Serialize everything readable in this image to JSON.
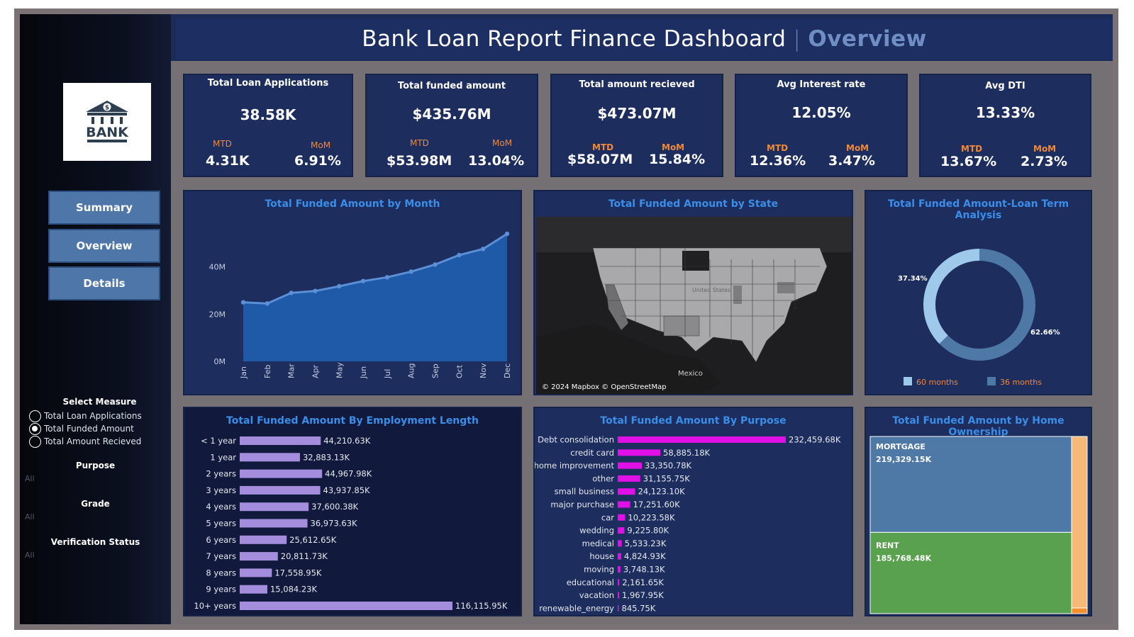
{
  "title": {
    "main": "Bank Loan Report Finance Dashboard",
    "separator": "|",
    "accent": "Overview"
  },
  "logo": {
    "icon": "bank-icon",
    "text": "BANK"
  },
  "nav": [
    {
      "label": "Summary"
    },
    {
      "label": "Overview"
    },
    {
      "label": "Details"
    }
  ],
  "filters": {
    "measure_title": "Select Measure",
    "measures": [
      {
        "label": "Total Loan Applications",
        "selected": false
      },
      {
        "label": "Total Funded Amount",
        "selected": true
      },
      {
        "label": "Total Amount Recieved",
        "selected": false
      }
    ],
    "purpose": {
      "title": "Purpose",
      "value": "All"
    },
    "grade": {
      "title": "Grade",
      "value": "All"
    },
    "verification": {
      "title": "Verification Status",
      "value": "All"
    }
  },
  "kpis": [
    {
      "title": "Total Loan Applications",
      "value": "38.58K",
      "mtd_label": "MTD",
      "mtd": "4.31K",
      "mom_label": "MoM",
      "mom": "6.91%"
    },
    {
      "title": "Total funded amount",
      "value": "$435.76M",
      "mtd_label": "MTD",
      "mtd": "$53.98M",
      "mom_label": "MoM",
      "mom": "13.04%"
    },
    {
      "title": "Total amount recieved",
      "value": "$473.07M",
      "mtd_label": "MTD",
      "mtd": "$58.07M",
      "mom_label": "MoM",
      "mom": "15.84%"
    },
    {
      "title": "Avg Interest rate",
      "value": "12.05%",
      "mtd_label": "MTD",
      "mtd": "12.36%",
      "mom_label": "MoM",
      "mom": "3.47%"
    },
    {
      "title": "Avg DTI",
      "value": "13.33%",
      "mtd_label": "MTD",
      "mtd": "13.67%",
      "mom_label": "MoM",
      "mom": "2.73%"
    }
  ],
  "panels": {
    "month": "Total Funded Amount by Month",
    "state": "Total Funded Amount by State",
    "term": "Total Funded Amount-Loan Term Analysis",
    "employment": "Total Funded Amount By Employment Length",
    "purpose": "Total Funded Amount By Purpose",
    "home": "Total Funded Amount by Home Ownership"
  },
  "map": {
    "attribution": "© 2024 Mapbox © OpenStreetMap",
    "label_mexico": "Mexico",
    "label_us": "United States"
  },
  "colors": {
    "accent": "#3b8ee8",
    "area": "#1f5aa8",
    "emp_bar": "#a48ddc",
    "purpose_bar": "#e010e6",
    "mortgage": "#4e79a7",
    "rent": "#59a14f",
    "other": "#f7b977",
    "term60": "#9ec9ea",
    "term36": "#4e79a7",
    "kpi_label": "#f0893a"
  },
  "chart_data": [
    {
      "type": "area",
      "title": "Total Funded Amount by Month",
      "categories": [
        "Jan",
        "Feb",
        "Mar",
        "Apr",
        "May",
        "Jun",
        "Jul",
        "Aug",
        "Sep",
        "Oct",
        "Nov",
        "Dec"
      ],
      "values": [
        25.0,
        24.5,
        29.0,
        29.8,
        31.8,
        34.0,
        35.6,
        38.0,
        41.0,
        45.0,
        47.6,
        54.0
      ],
      "unit": "M",
      "y_ticks": [
        "0M",
        "20M",
        "40M"
      ],
      "ylim": [
        0,
        60
      ]
    },
    {
      "type": "pie",
      "title": "Total Funded Amount-Loan Term Analysis",
      "series": [
        {
          "name": "60 months",
          "value": 37.34,
          "label": "37.34%"
        },
        {
          "name": "36 months",
          "value": 62.66,
          "label": "62.66%"
        }
      ]
    },
    {
      "type": "bar",
      "title": "Total Funded Amount By Employment Length",
      "categories": [
        "< 1 year",
        "1 year",
        "2 years",
        "3 years",
        "4 years",
        "5 years",
        "6 years",
        "7 years",
        "8 years",
        "9 years",
        "10+ years"
      ],
      "values": [
        44210.63,
        32883.13,
        44967.98,
        43937.85,
        37600.38,
        36973.63,
        25612.65,
        20811.73,
        17558.95,
        15084.23,
        116115.95
      ],
      "labels": [
        "44,210.63K",
        "32,883.13K",
        "44,967.98K",
        "43,937.85K",
        "37,600.38K",
        "36,973.63K",
        "25,612.65K",
        "20,811.73K",
        "17,558.95K",
        "15,084.23K",
        "116,115.95K"
      ]
    },
    {
      "type": "bar",
      "title": "Total Funded Amount By Purpose",
      "categories": [
        "Debt consolidation",
        "credit card",
        "home improvement",
        "other",
        "small business",
        "major purchase",
        "car",
        "wedding",
        "medical",
        "house",
        "moving",
        "educational",
        "vacation",
        "renewable_energy"
      ],
      "values": [
        232459.68,
        58885.18,
        33350.78,
        31155.75,
        24123.1,
        17251.6,
        10223.58,
        9225.8,
        5533.23,
        4824.93,
        3748.13,
        2161.65,
        1967.95,
        845.75
      ],
      "labels": [
        "232,459.68K",
        "58,885.18K",
        "33,350.78K",
        "31,155.75K",
        "24,123.10K",
        "17,251.60K",
        "10,223.58K",
        "9,225.80K",
        "5,533.23K",
        "4,824.93K",
        "3,748.13K",
        "2,161.65K",
        "1,967.95K",
        "845.75K"
      ]
    },
    {
      "type": "heatmap",
      "title": "Total Funded Amount by Home Ownership",
      "series": [
        {
          "name": "MORTGAGE",
          "value": 219329.15,
          "label": "219,329.15K"
        },
        {
          "name": "RENT",
          "value": 185768.48,
          "label": "185,768.48K"
        },
        {
          "name": "",
          "value": 30000,
          "label": ""
        }
      ]
    }
  ]
}
